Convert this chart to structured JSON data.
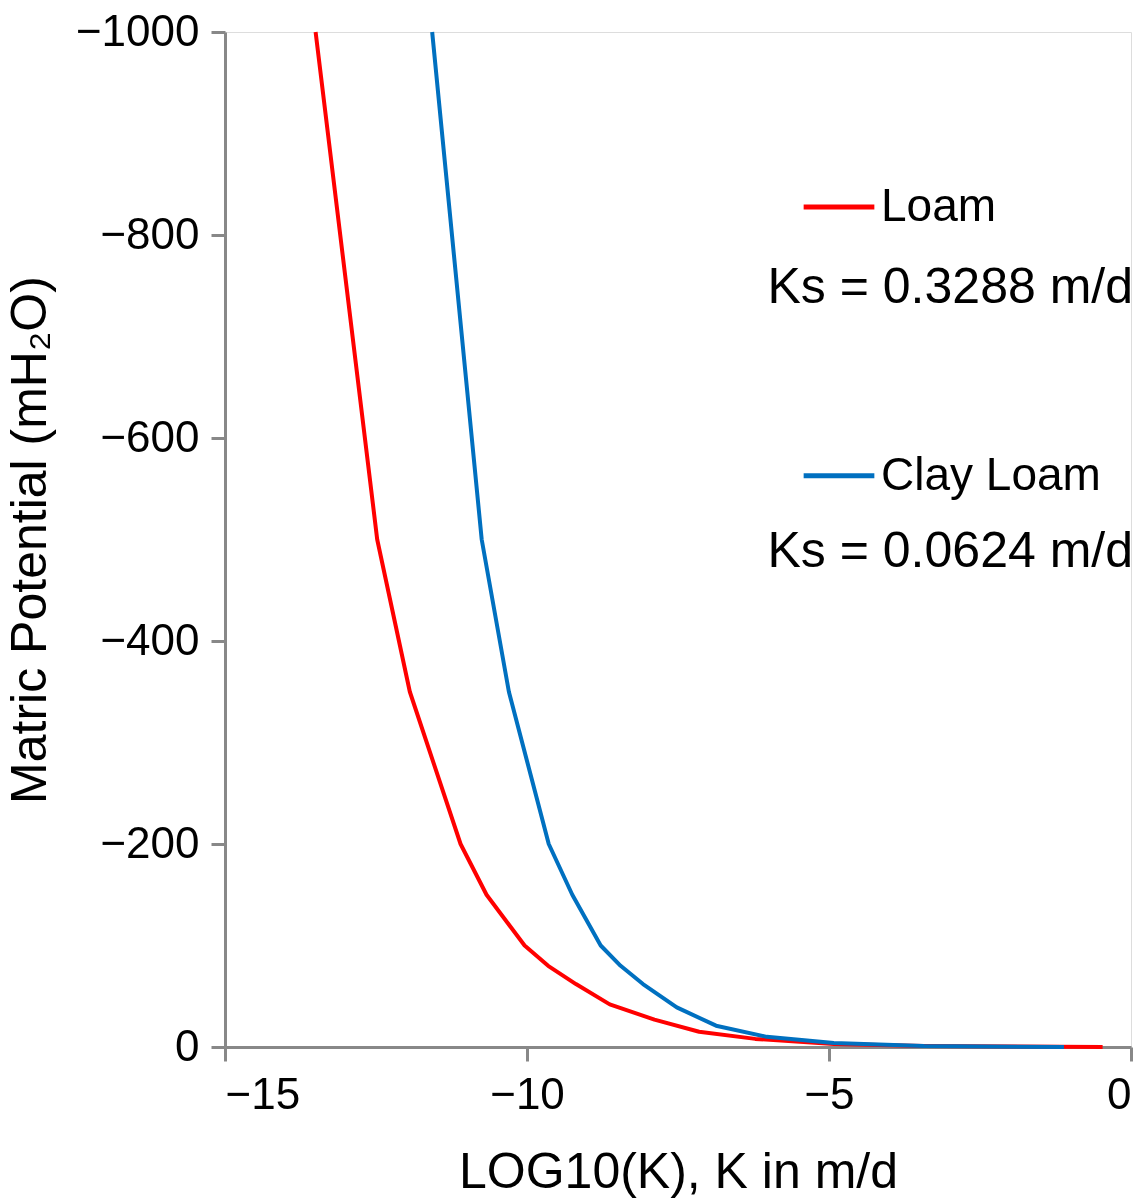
{
  "chart_data": {
    "type": "line",
    "xlabel": "LOG10(K), K in m/d",
    "ylabel": "Matric Potential (mH₂O)",
    "xlim": [
      -15,
      0
    ],
    "xticks": [
      -15,
      -10,
      -5,
      0
    ],
    "ylim": [
      0,
      -1000
    ],
    "yticks": [
      0,
      -200,
      -400,
      -600,
      -800,
      -1000
    ],
    "grid": false,
    "legend": "top right",
    "marker": "none",
    "line_style": "solid",
    "series": [
      {
        "name": "Loam",
        "color": "#ff0000",
        "x": [
          -13.5,
          -12.48,
          -11.94,
          -11.1,
          -10.67,
          -10.04,
          -9.65,
          -9.19,
          -8.63,
          -7.89,
          -7.15,
          -6.22,
          -4.92,
          -3.43,
          -0.47
        ],
        "values": [
          -1000,
          -500,
          -350,
          -200,
          -150,
          -100,
          -80,
          -62,
          -42,
          -27,
          -15,
          -8,
          -3,
          -1,
          0
        ]
      },
      {
        "name": "Clay Loam",
        "color": "#0070c0",
        "x": [
          -11.57,
          -10.75,
          -10.3,
          -9.64,
          -9.25,
          -8.78,
          -8.45,
          -8.08,
          -7.52,
          -6.87,
          -6.03,
          -4.92,
          -3.43,
          -1.11
        ],
        "values": [
          -1000,
          -500,
          -350,
          -200,
          -150,
          -100,
          -80,
          -62,
          -39,
          -21,
          -10,
          -4,
          -1,
          0
        ]
      }
    ],
    "annotations": [
      "Ks = 0.3288 m/d",
      "Ks = 0.0624 m/d"
    ]
  }
}
